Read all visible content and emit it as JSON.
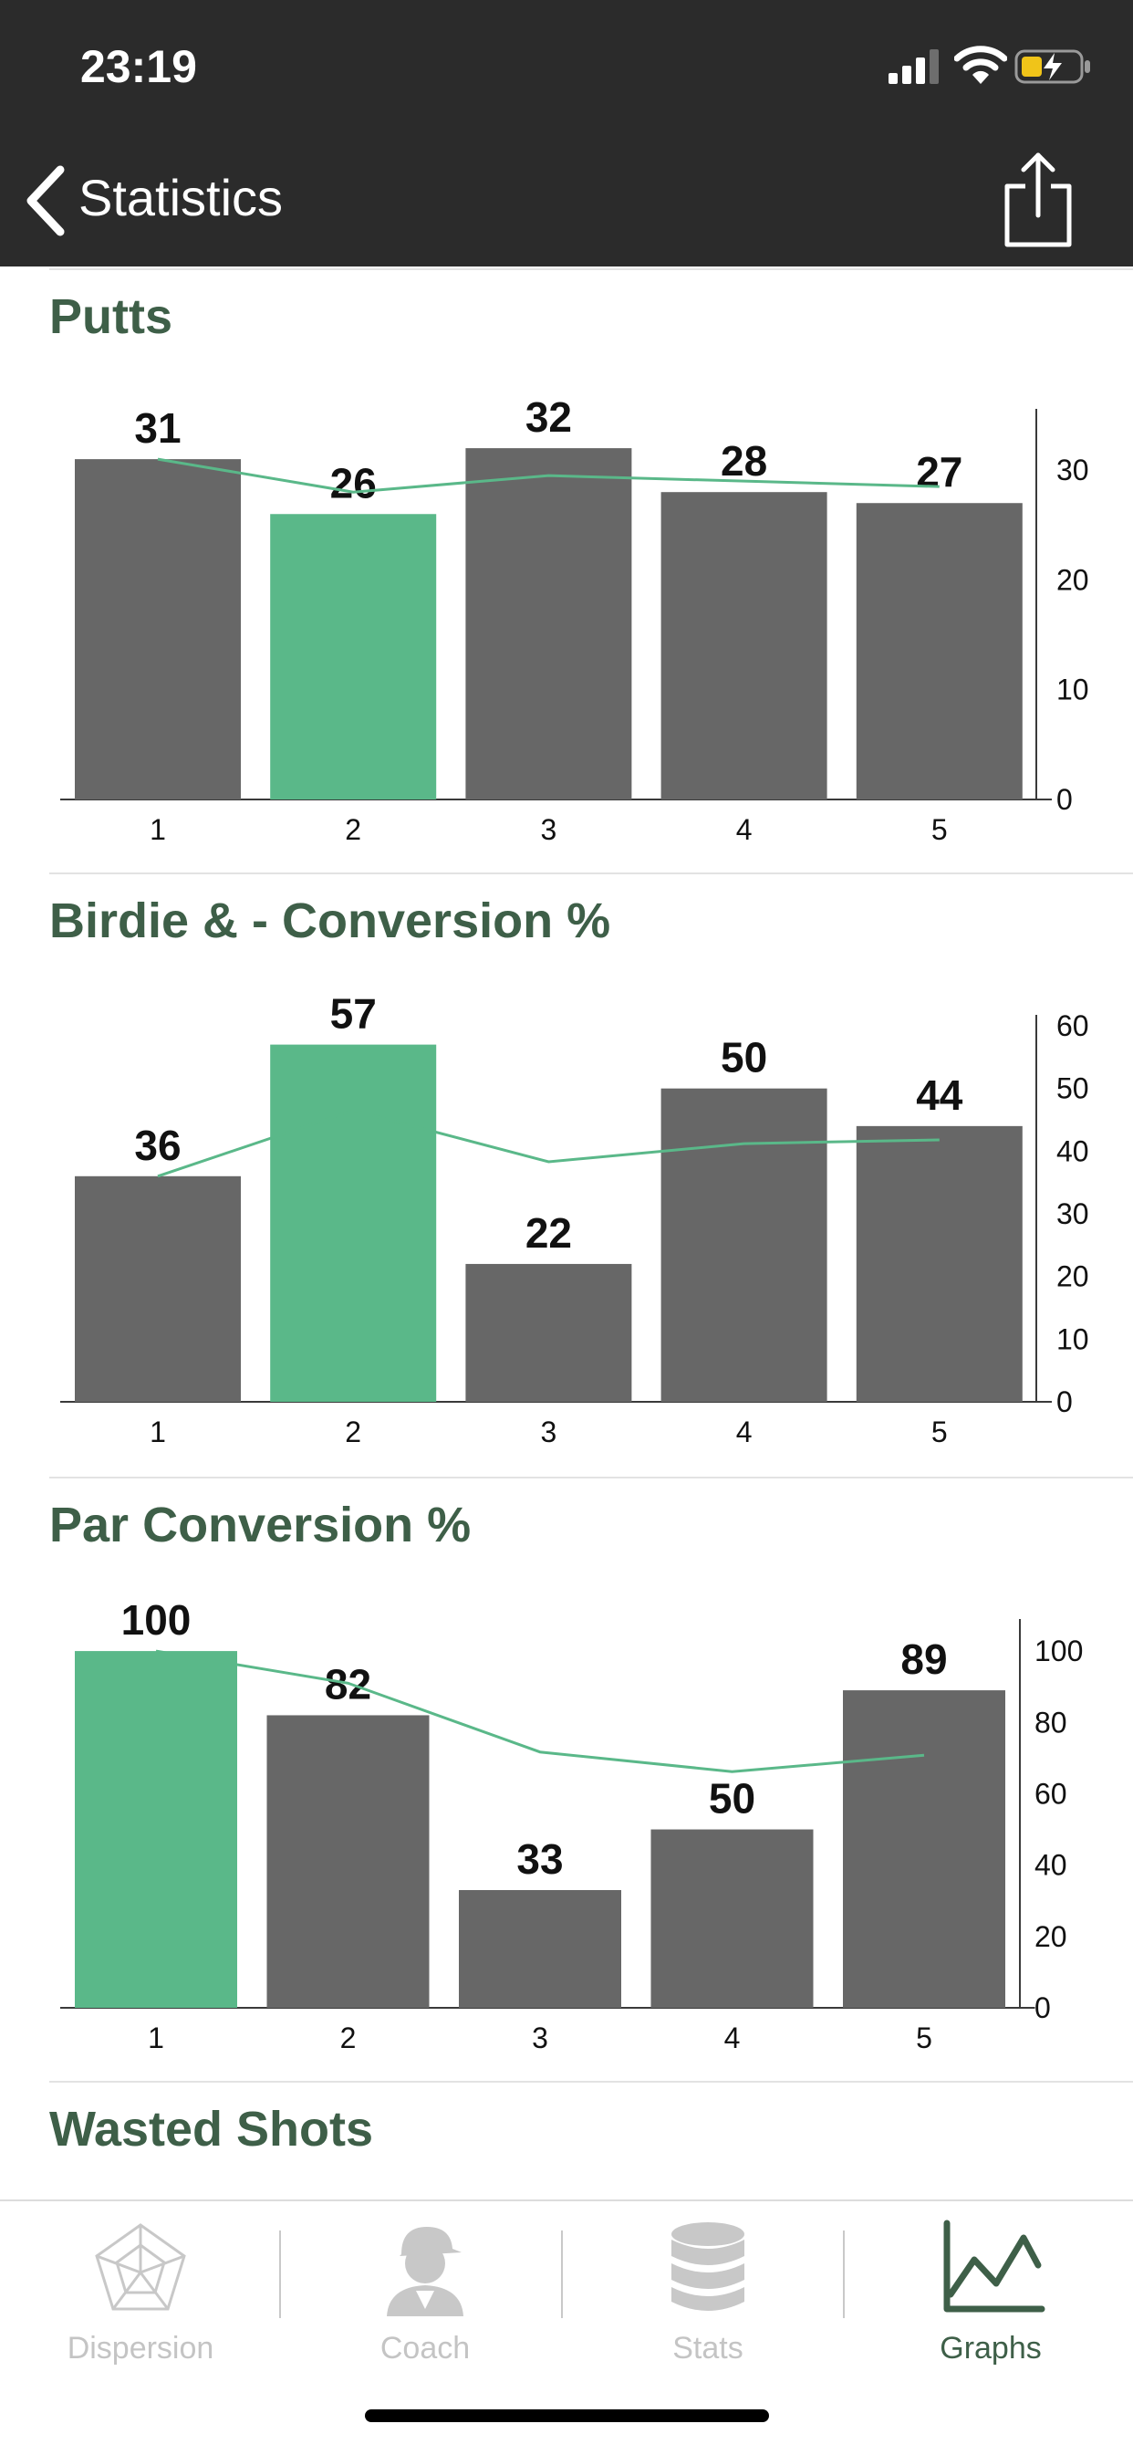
{
  "status_bar": {
    "time": "23:19"
  },
  "nav": {
    "title": "Statistics"
  },
  "sections": [
    {
      "title": "Putts"
    },
    {
      "title": "Birdie & - Conversion %"
    },
    {
      "title": "Par Conversion %"
    },
    {
      "title": "Wasted Shots"
    }
  ],
  "chart_data": [
    {
      "type": "bar",
      "title": "Putts",
      "categories": [
        "1",
        "2",
        "3",
        "4",
        "5"
      ],
      "values": [
        31,
        26,
        32,
        28,
        27
      ],
      "highlight_index": 1,
      "trend_line": [
        31,
        28,
        29.5,
        29,
        28.5
      ],
      "ylim": [
        0,
        35
      ],
      "yticks": [
        0,
        10,
        20,
        30
      ]
    },
    {
      "type": "bar",
      "title": "Birdie & - Conversion %",
      "categories": [
        "1",
        "2",
        "3",
        "4",
        "5"
      ],
      "values": [
        36,
        57,
        22,
        50,
        44
      ],
      "highlight_index": 1,
      "trend_line": [
        36,
        46.5,
        38.3,
        41.2,
        41.8
      ],
      "ylim": [
        0,
        60
      ],
      "yticks": [
        0,
        10,
        20,
        30,
        40,
        50,
        60
      ]
    },
    {
      "type": "bar",
      "title": "Par Conversion %",
      "categories": [
        "1",
        "2",
        "3",
        "4",
        "5"
      ],
      "values": [
        100,
        82,
        33,
        50,
        89
      ],
      "highlight_index": 0,
      "trend_line": [
        100,
        91,
        71.7,
        66.2,
        70.8
      ],
      "ylim": [
        0,
        110
      ],
      "yticks": [
        0,
        20,
        40,
        60,
        80,
        100
      ]
    }
  ],
  "tabs": [
    {
      "label": "Dispersion",
      "icon": "radar-icon",
      "active": false
    },
    {
      "label": "Coach",
      "icon": "coach-icon",
      "active": false
    },
    {
      "label": "Stats",
      "icon": "database-icon",
      "active": false
    },
    {
      "label": "Graphs",
      "icon": "line-chart-icon",
      "active": true
    }
  ],
  "colors": {
    "header_bg": "#2b2b2b",
    "bar": "#676767",
    "highlight_bar": "#5ab889",
    "trend_line": "#5ab889",
    "section_title": "#3e5f48",
    "tab_inactive": "#c4c4c4",
    "tab_active": "#3e5f48"
  }
}
